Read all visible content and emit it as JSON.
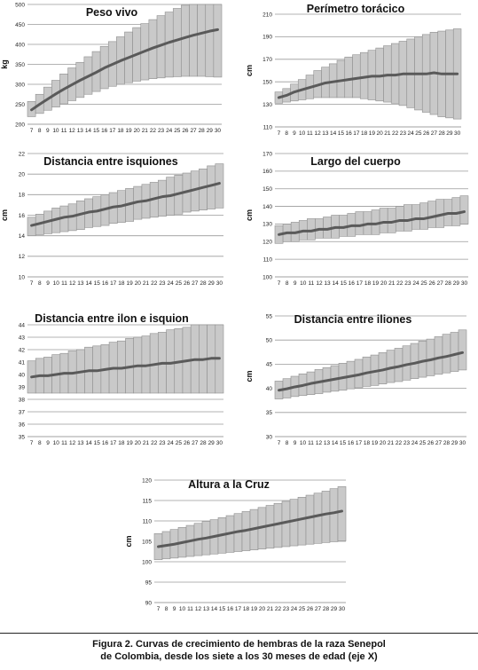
{
  "chart_data": [
    {
      "type": "line",
      "title": "Peso vivo",
      "ylabel": "kg",
      "ylim": [
        200,
        500
      ],
      "yticks": [
        200,
        250,
        300,
        350,
        400,
        450,
        500
      ],
      "x": [
        7,
        8,
        9,
        10,
        11,
        12,
        13,
        14,
        15,
        16,
        17,
        18,
        19,
        20,
        21,
        22,
        23,
        24,
        25,
        26,
        27,
        28,
        29,
        30
      ],
      "series": [
        {
          "name": "",
          "role": "mean",
          "values": [
            236,
            250,
            263,
            276,
            288,
            299,
            310,
            320,
            330,
            341,
            350,
            359,
            367,
            375,
            383,
            391,
            398,
            405,
            411,
            417,
            423,
            428,
            433,
            437
          ]
        },
        {
          "name": "",
          "role": "upper",
          "values": [
            257,
            275,
            293,
            310,
            326,
            341,
            355,
            369,
            382,
            395,
            407,
            419,
            431,
            442,
            452,
            462,
            472,
            481,
            490,
            498,
            506,
            513,
            520,
            526
          ]
        },
        {
          "name": "",
          "role": "lower",
          "values": [
            219,
            227,
            235,
            243,
            251,
            259,
            267,
            275,
            282,
            289,
            295,
            300,
            304,
            308,
            311,
            314,
            316,
            318,
            319,
            320,
            320,
            320,
            319,
            318
          ]
        }
      ]
    },
    {
      "type": "line",
      "title": "Perímetro torácico",
      "ylabel": "cm",
      "ylim": [
        110,
        210
      ],
      "yticks": [
        110,
        130,
        150,
        170,
        190,
        210
      ],
      "x": [
        7,
        8,
        9,
        10,
        11,
        12,
        13,
        14,
        15,
        16,
        17,
        18,
        19,
        20,
        21,
        22,
        23,
        24,
        25,
        26,
        27,
        28,
        29,
        30
      ],
      "series": [
        {
          "name": "",
          "role": "mean",
          "values": [
            136,
            138,
            141,
            143,
            145,
            147,
            149,
            150,
            151,
            152,
            153,
            154,
            155,
            155,
            156,
            156,
            157,
            157,
            157,
            157,
            158,
            157,
            157,
            157
          ]
        },
        {
          "name": "",
          "role": "upper",
          "values": [
            141,
            144,
            148,
            152,
            156,
            160,
            163,
            166,
            169,
            172,
            174,
            176,
            178,
            180,
            182,
            184,
            186,
            188,
            190,
            192,
            194,
            195,
            196,
            197
          ]
        },
        {
          "name": "",
          "role": "lower",
          "values": [
            131,
            132,
            133,
            134,
            135,
            136,
            136,
            136,
            136,
            136,
            136,
            135,
            134,
            133,
            132,
            131,
            129,
            127,
            125,
            123,
            121,
            119,
            118,
            117
          ]
        }
      ]
    },
    {
      "type": "line",
      "title": "Distancia entre isquiones",
      "ylabel": "cm",
      "ylim": [
        10,
        22
      ],
      "yticks": [
        10,
        12,
        14,
        16,
        18,
        20,
        22
      ],
      "x": [
        7,
        8,
        9,
        10,
        11,
        12,
        13,
        14,
        15,
        16,
        17,
        18,
        19,
        20,
        21,
        22,
        23,
        24,
        25,
        26,
        27,
        28,
        29,
        30
      ],
      "series": [
        {
          "name": "",
          "role": "mean",
          "values": [
            15.0,
            15.2,
            15.4,
            15.6,
            15.8,
            15.9,
            16.1,
            16.3,
            16.4,
            16.6,
            16.8,
            16.9,
            17.1,
            17.3,
            17.4,
            17.6,
            17.8,
            17.9,
            18.1,
            18.3,
            18.5,
            18.7,
            18.9,
            19.1
          ]
        },
        {
          "name": "",
          "role": "upper",
          "values": [
            15.8,
            16.1,
            16.4,
            16.7,
            16.9,
            17.1,
            17.4,
            17.6,
            17.8,
            18.0,
            18.2,
            18.4,
            18.6,
            18.8,
            19.0,
            19.2,
            19.4,
            19.7,
            19.9,
            20.1,
            20.3,
            20.5,
            20.8,
            21.0
          ]
        },
        {
          "name": "",
          "role": "lower",
          "values": [
            14.0,
            14.1,
            14.2,
            14.3,
            14.4,
            14.5,
            14.6,
            14.8,
            14.9,
            15.0,
            15.2,
            15.3,
            15.4,
            15.6,
            15.7,
            15.8,
            15.9,
            16.0,
            16.1,
            16.3,
            16.4,
            16.5,
            16.6,
            16.7
          ]
        }
      ]
    },
    {
      "type": "line",
      "title": "Largo del cuerpo",
      "ylabel": "cm",
      "ylim": [
        100,
        170
      ],
      "yticks": [
        100,
        110,
        120,
        130,
        140,
        150,
        160,
        170
      ],
      "x": [
        7,
        8,
        9,
        10,
        11,
        12,
        13,
        14,
        15,
        16,
        17,
        18,
        19,
        20,
        21,
        22,
        23,
        24,
        25,
        26,
        27,
        28,
        29,
        30
      ],
      "series": [
        {
          "name": "",
          "role": "mean",
          "values": [
            124,
            125,
            125,
            126,
            126,
            127,
            127,
            128,
            128,
            129,
            129,
            130,
            130,
            131,
            131,
            132,
            132,
            133,
            133,
            134,
            135,
            136,
            136,
            137
          ]
        },
        {
          "name": "",
          "role": "upper",
          "values": [
            129,
            130,
            131,
            132,
            133,
            133,
            134,
            135,
            135,
            136,
            137,
            137,
            138,
            139,
            139,
            140,
            141,
            141,
            142,
            143,
            144,
            144,
            145,
            146
          ]
        },
        {
          "name": "",
          "role": "lower",
          "values": [
            119,
            120,
            120,
            121,
            121,
            122,
            122,
            122,
            123,
            123,
            124,
            124,
            124,
            125,
            125,
            126,
            126,
            127,
            127,
            128,
            128,
            129,
            129,
            130
          ]
        }
      ]
    },
    {
      "type": "line",
      "title": "Distancia entre ilon e isquion",
      "ylabel": "",
      "ylim": [
        35,
        44
      ],
      "yticks": [
        35,
        36,
        37,
        38,
        39,
        40,
        41,
        42,
        43,
        44
      ],
      "x": [
        7,
        8,
        9,
        10,
        11,
        12,
        13,
        14,
        15,
        16,
        17,
        18,
        19,
        20,
        21,
        22,
        23,
        24,
        25,
        26,
        27,
        28,
        29,
        30
      ],
      "series": [
        {
          "name": "",
          "role": "mean",
          "values": [
            39.8,
            39.9,
            39.9,
            40.0,
            40.1,
            40.1,
            40.2,
            40.3,
            40.3,
            40.4,
            40.5,
            40.5,
            40.6,
            40.7,
            40.7,
            40.8,
            40.9,
            40.9,
            41.0,
            41.1,
            41.2,
            41.2,
            41.3,
            41.3
          ]
        },
        {
          "name": "",
          "role": "upper",
          "values": [
            41.1,
            41.3,
            41.4,
            41.6,
            41.7,
            41.9,
            42.0,
            42.2,
            42.3,
            42.4,
            42.6,
            42.7,
            42.9,
            43.0,
            43.1,
            43.3,
            43.4,
            43.6,
            43.7,
            43.8,
            44.0,
            44.1,
            44.2,
            44.4
          ]
        },
        {
          "name": "",
          "role": "lower",
          "values": [
            38.5,
            38.5,
            38.5,
            38.5,
            38.5,
            38.5,
            38.5,
            38.5,
            38.5,
            38.5,
            38.5,
            38.5,
            38.5,
            38.5,
            38.5,
            38.5,
            38.5,
            38.5,
            38.5,
            38.5,
            38.5,
            38.5,
            38.5,
            38.5
          ]
        }
      ]
    },
    {
      "type": "line",
      "title": "Distancia entre iliones",
      "ylabel": "cm",
      "ylim": [
        30,
        55
      ],
      "yticks": [
        30,
        35,
        40,
        45,
        50,
        55
      ],
      "x": [
        7,
        8,
        9,
        10,
        11,
        12,
        13,
        14,
        15,
        16,
        17,
        18,
        19,
        20,
        21,
        22,
        23,
        24,
        25,
        26,
        27,
        28,
        29,
        30
      ],
      "series": [
        {
          "name": "",
          "role": "mean",
          "values": [
            39.6,
            39.9,
            40.3,
            40.6,
            41.0,
            41.3,
            41.6,
            41.9,
            42.2,
            42.5,
            42.8,
            43.2,
            43.5,
            43.8,
            44.2,
            44.5,
            44.9,
            45.2,
            45.6,
            45.9,
            46.3,
            46.6,
            47.0,
            47.4
          ]
        },
        {
          "name": "",
          "role": "upper",
          "values": [
            41.5,
            42.0,
            42.5,
            43.0,
            43.4,
            43.9,
            44.3,
            44.7,
            45.2,
            45.6,
            46.0,
            46.5,
            46.9,
            47.4,
            47.9,
            48.3,
            48.8,
            49.3,
            49.8,
            50.2,
            50.7,
            51.2,
            51.6,
            52.1
          ]
        },
        {
          "name": "",
          "role": "lower",
          "values": [
            37.8,
            38.0,
            38.3,
            38.5,
            38.7,
            38.9,
            39.2,
            39.4,
            39.6,
            39.9,
            40.1,
            40.4,
            40.6,
            40.9,
            41.2,
            41.4,
            41.7,
            42.0,
            42.3,
            42.6,
            42.9,
            43.2,
            43.5,
            43.8
          ]
        }
      ]
    },
    {
      "type": "line",
      "title": "Altura a la Cruz",
      "ylabel": "cm",
      "ylim": [
        90,
        120
      ],
      "yticks": [
        90,
        95,
        100,
        105,
        110,
        115,
        120
      ],
      "x": [
        7,
        8,
        9,
        10,
        11,
        12,
        13,
        14,
        15,
        16,
        17,
        18,
        19,
        20,
        21,
        22,
        23,
        24,
        25,
        26,
        27,
        28,
        29,
        30
      ],
      "series": [
        {
          "name": "",
          "role": "mean",
          "values": [
            103.7,
            104.0,
            104.3,
            104.7,
            105.1,
            105.5,
            105.8,
            106.2,
            106.6,
            107.0,
            107.4,
            107.7,
            108.1,
            108.5,
            108.9,
            109.3,
            109.7,
            110.1,
            110.5,
            110.9,
            111.3,
            111.7,
            112.0,
            112.4
          ]
        },
        {
          "name": "",
          "role": "upper",
          "values": [
            106.9,
            107.4,
            107.9,
            108.4,
            108.9,
            109.4,
            109.9,
            110.3,
            110.8,
            111.3,
            111.8,
            112.3,
            112.8,
            113.3,
            113.8,
            114.3,
            114.8,
            115.3,
            115.8,
            116.3,
            116.8,
            117.3,
            117.9,
            118.4
          ]
        },
        {
          "name": "",
          "role": "lower",
          "values": [
            100.5,
            100.7,
            100.9,
            101.1,
            101.3,
            101.5,
            101.7,
            101.9,
            102.1,
            102.3,
            102.5,
            102.7,
            102.9,
            103.1,
            103.3,
            103.5,
            103.7,
            103.9,
            104.1,
            104.3,
            104.5,
            104.7,
            104.9,
            105.1
          ]
        }
      ]
    }
  ],
  "caption": {
    "line1": "Figura 2. Curvas de crecimiento de hembras de la raza Senepol",
    "line2": "de Colombia, desde los siete a los 30 meses de edad (eje X)"
  }
}
